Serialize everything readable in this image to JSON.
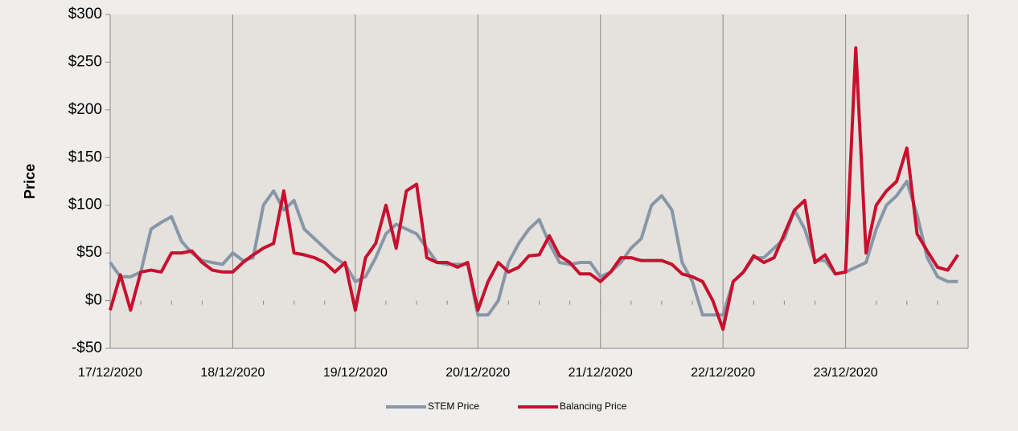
{
  "chart_data": {
    "type": "line",
    "y_label": "Price",
    "categories": [
      "17/12/2020",
      null,
      null,
      null,
      null,
      null,
      null,
      null,
      null,
      null,
      null,
      null,
      "18/12/2020",
      null,
      null,
      null,
      null,
      null,
      null,
      null,
      null,
      null,
      null,
      null,
      "19/12/2020",
      null,
      null,
      null,
      null,
      null,
      null,
      null,
      null,
      null,
      null,
      null,
      "20/12/2020",
      null,
      null,
      null,
      null,
      null,
      null,
      null,
      null,
      null,
      null,
      null,
      "21/12/2020",
      null,
      null,
      null,
      null,
      null,
      null,
      null,
      null,
      null,
      null,
      null,
      "22/12/2020",
      null,
      null,
      null,
      null,
      null,
      null,
      null,
      null,
      null,
      null,
      null,
      "23/12/2020",
      null,
      null,
      null,
      null,
      null,
      null,
      null,
      null,
      null,
      null,
      null
    ],
    "series": [
      {
        "name": "STEM Price",
        "color": "#8797a8",
        "values": [
          40,
          25,
          25,
          30,
          75,
          82,
          88,
          62,
          50,
          42,
          40,
          38,
          50,
          42,
          45,
          100,
          115,
          95,
          105,
          75,
          65,
          55,
          45,
          38,
          20,
          25,
          45,
          70,
          80,
          75,
          70,
          55,
          40,
          38,
          38,
          38,
          -15,
          -15,
          0,
          40,
          60,
          75,
          85,
          60,
          40,
          38,
          40,
          40,
          25,
          30,
          40,
          55,
          65,
          100,
          110,
          95,
          40,
          20,
          -15,
          -15,
          -15,
          20,
          30,
          45,
          45,
          55,
          65,
          95,
          75,
          42,
          42,
          28,
          30,
          35,
          40,
          75,
          100,
          110,
          125,
          90,
          45,
          25,
          20,
          20
        ]
      },
      {
        "name": "Balancing Price",
        "color": "#c8102e",
        "values": [
          -10,
          27,
          -10,
          30,
          32,
          30,
          50,
          50,
          52,
          40,
          32,
          30,
          30,
          40,
          48,
          55,
          60,
          115,
          50,
          48,
          45,
          40,
          30,
          40,
          -10,
          45,
          60,
          100,
          55,
          115,
          122,
          45,
          40,
          40,
          35,
          40,
          -10,
          20,
          40,
          30,
          35,
          47,
          48,
          68,
          47,
          40,
          28,
          28,
          20,
          30,
          45,
          45,
          42,
          42,
          42,
          38,
          28,
          25,
          20,
          0,
          -30,
          20,
          30,
          47,
          40,
          45,
          70,
          95,
          105,
          40,
          48,
          28,
          30,
          265,
          50,
          100,
          115,
          125,
          160,
          70,
          52,
          35,
          32,
          48
        ]
      }
    ],
    "ylim": [
      -50,
      300
    ],
    "yticks": [
      {
        "value": -50,
        "label": "-$50"
      },
      {
        "value": 0,
        "label": "$0"
      },
      {
        "value": 50,
        "label": "$50"
      },
      {
        "value": 100,
        "label": "$100"
      },
      {
        "value": 150,
        "label": "$150"
      },
      {
        "value": 200,
        "label": "$200"
      },
      {
        "value": 250,
        "label": "$250"
      },
      {
        "value": 300,
        "label": "$300"
      }
    ],
    "grid": "x",
    "legend": "bottom"
  }
}
